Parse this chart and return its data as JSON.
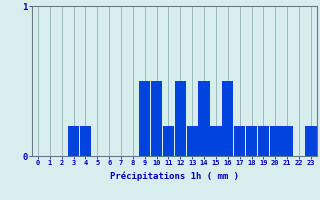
{
  "hours": [
    0,
    1,
    2,
    3,
    4,
    5,
    6,
    7,
    8,
    9,
    10,
    11,
    12,
    13,
    14,
    15,
    16,
    17,
    18,
    19,
    20,
    21,
    22,
    23
  ],
  "values": [
    0,
    0,
    0,
    0.2,
    0.2,
    0,
    0,
    0,
    0,
    0.5,
    0.5,
    0.2,
    0.5,
    0.2,
    0.5,
    0.2,
    0.5,
    0.2,
    0.2,
    0.2,
    0.2,
    0.2,
    0,
    0.2
  ],
  "bar_color": "#0044dd",
  "background_color": "#d8eeee",
  "grid_color_h": "#ee9999",
  "grid_color_v": "#99bbbb",
  "ylim": [
    0,
    1.0
  ],
  "yticks": [
    0,
    1
  ],
  "xlabel": "Précipitations 1h ( mm )",
  "xlabel_color": "#0000bb",
  "axis_color": "#667788",
  "tick_color": "#0000bb"
}
